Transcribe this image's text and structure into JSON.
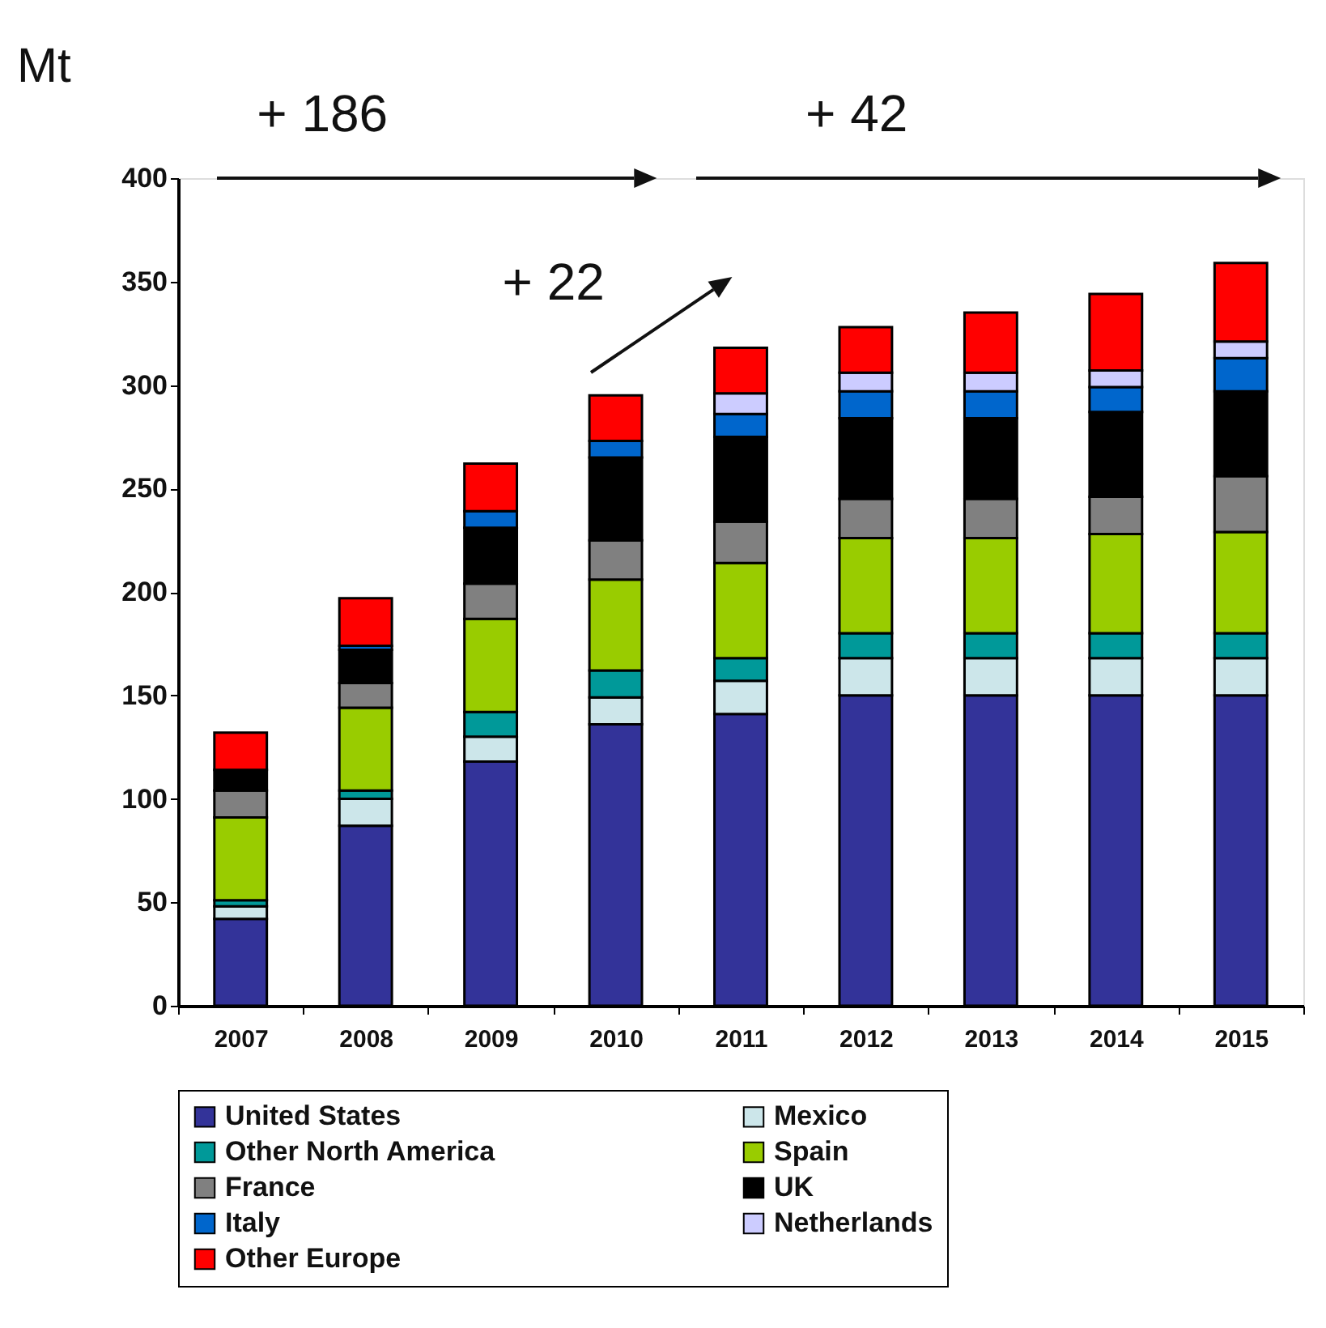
{
  "chart_data": {
    "type": "bar",
    "stacked": true,
    "ylabel": "Mt",
    "categories": [
      "2007",
      "2008",
      "2009",
      "2010",
      "2011",
      "2012",
      "2013",
      "2014",
      "2015"
    ],
    "ylim": [
      0,
      400
    ],
    "yticks": [
      0,
      50,
      100,
      150,
      200,
      250,
      300,
      350,
      400
    ],
    "legend": "bottom",
    "annotations": [
      "+ 186",
      "+ 42",
      "+ 22"
    ],
    "series": [
      {
        "name": "United States",
        "color": "#333399",
        "values": [
          42,
          87,
          118,
          136,
          141,
          150,
          150,
          150,
          150
        ]
      },
      {
        "name": "Mexico",
        "color": "#cce6ea",
        "values": [
          6,
          13,
          12,
          13,
          16,
          18,
          18,
          18,
          18
        ]
      },
      {
        "name": "Other North America",
        "color": "#009999",
        "values": [
          3,
          4,
          12,
          13,
          11,
          12,
          12,
          12,
          12
        ]
      },
      {
        "name": "Spain",
        "color": "#99cc00",
        "values": [
          40,
          40,
          45,
          44,
          46,
          46,
          46,
          48,
          49
        ]
      },
      {
        "name": "France",
        "color": "#808080",
        "values": [
          13,
          12,
          17,
          19,
          20,
          19,
          19,
          18,
          27
        ]
      },
      {
        "name": "UK",
        "color": "#000000",
        "values": [
          10,
          16,
          27,
          40,
          41,
          39,
          39,
          41,
          41
        ]
      },
      {
        "name": "Italy",
        "color": "#0066cc",
        "values": [
          null,
          2,
          8,
          8,
          11,
          13,
          13,
          12,
          16
        ]
      },
      {
        "name": "Netherlands",
        "color": "#ccccff",
        "values": [
          null,
          null,
          null,
          null,
          10,
          9,
          9,
          8,
          8
        ]
      },
      {
        "name": "Other Europe",
        "color": "#ff0000",
        "values": [
          18,
          23,
          23,
          22,
          22,
          22,
          29,
          37,
          38
        ]
      }
    ]
  }
}
